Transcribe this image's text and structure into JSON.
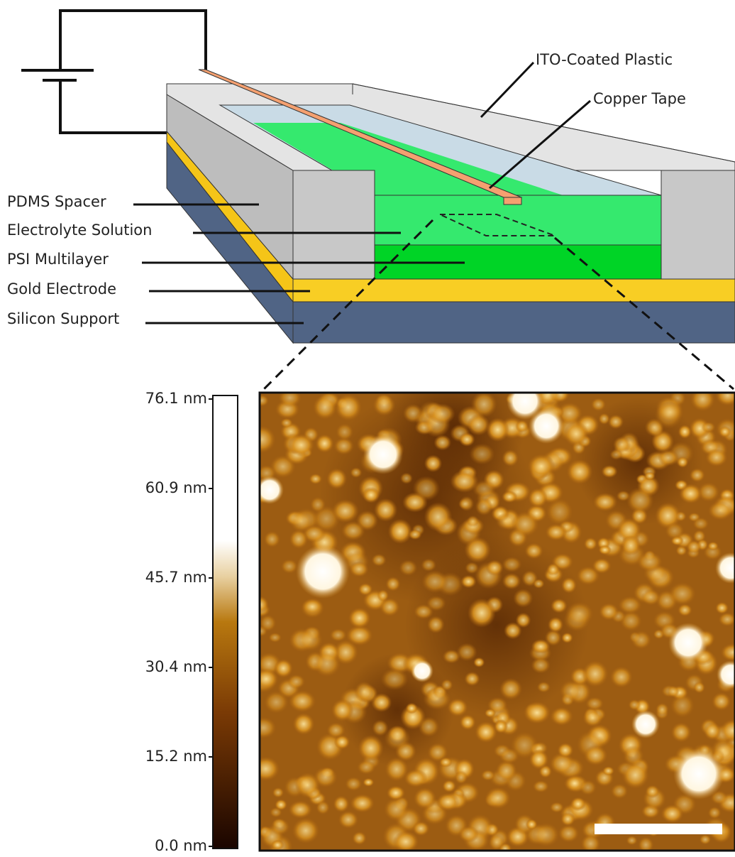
{
  "labels": {
    "ito": "ITO-Coated Plastic",
    "copper": "Copper Tape",
    "pdms": "PDMS Spacer",
    "electrolyte": "Electrolyte Solution",
    "psi": "PSI Multilayer",
    "gold": "Gold Electrode",
    "silicon": "Silicon Support"
  },
  "colorbar": {
    "ticks": [
      "76.1 nm",
      "60.9 nm",
      "45.7 nm",
      "30.4 nm",
      "15.2 nm",
      "0.0 nm"
    ]
  }
}
